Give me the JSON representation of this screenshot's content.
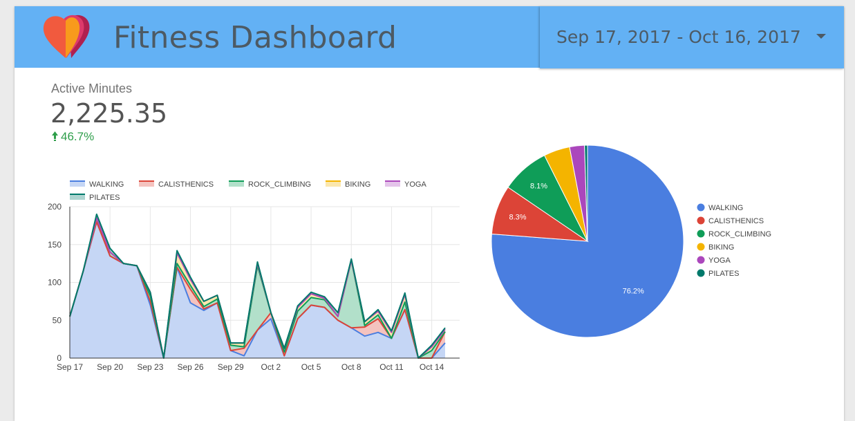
{
  "header": {
    "title": "Fitness Dashboard",
    "date_range": "Sep 17, 2017 - Oct 16, 2017",
    "logo_icon": "heart-logo-icon",
    "dropdown_icon": "caret-down-icon"
  },
  "kpi": {
    "label": "Active Minutes",
    "value": "2,225.35",
    "delta": "46.7%",
    "delta_icon": "arrow-up-icon",
    "delta_color": "#2e9e4a"
  },
  "chart_data": [
    {
      "type": "area",
      "stacked": true,
      "legend": [
        "WALKING",
        "CALISTHENICS",
        "ROCK_CLIMBING",
        "BIKING",
        "YOGA",
        "PILATES"
      ],
      "legend_position": "top-left",
      "x_tick_labels": [
        "Sep 17",
        "Sep 20",
        "Sep 23",
        "Sep 26",
        "Sep 29",
        "Oct 2",
        "Oct 5",
        "Oct 8",
        "Oct 11",
        "Oct 14"
      ],
      "x": [
        "Sep 17",
        "Sep 18",
        "Sep 19",
        "Sep 20",
        "Sep 21",
        "Sep 22",
        "Sep 23",
        "Sep 24",
        "Sep 25",
        "Sep 26",
        "Sep 27",
        "Sep 28",
        "Sep 29",
        "Sep 30",
        "Oct 1",
        "Oct 2",
        "Oct 3",
        "Oct 4",
        "Oct 5",
        "Oct 6",
        "Oct 7",
        "Oct 8",
        "Oct 9",
        "Oct 10",
        "Oct 11",
        "Oct 12",
        "Oct 13",
        "Oct 14",
        "Oct 15"
      ],
      "ylim": [
        0,
        200
      ],
      "y_ticks": [
        0,
        50,
        100,
        150,
        200
      ],
      "grid": true,
      "series": [
        {
          "name": "WALKING",
          "color": "#4a7ee0",
          "values": [
            55,
            115,
            180,
            135,
            125,
            122,
            70,
            0,
            120,
            73,
            63,
            73,
            10,
            3,
            37,
            52,
            3,
            52,
            70,
            67,
            50,
            40,
            29,
            34,
            26,
            64,
            0,
            0,
            20
          ]
        },
        {
          "name": "CALISTHENICS",
          "color": "#dc4437",
          "values": [
            0,
            0,
            0,
            0,
            0,
            0,
            5,
            0,
            0,
            18,
            2,
            0,
            0,
            10,
            0,
            8,
            0,
            0,
            0,
            0,
            0,
            0,
            12,
            18,
            0,
            0,
            0,
            0,
            15
          ]
        },
        {
          "name": "ROCK_CLIMBING",
          "color": "#0f9d58",
          "values": [
            0,
            0,
            5,
            5,
            0,
            0,
            7,
            0,
            5,
            5,
            3,
            5,
            7,
            2,
            85,
            0,
            5,
            10,
            10,
            10,
            5,
            89,
            2,
            5,
            0,
            10,
            0,
            10,
            0
          ]
        },
        {
          "name": "BIKING",
          "color": "#f4b400",
          "values": [
            0,
            0,
            0,
            0,
            0,
            0,
            5,
            0,
            14,
            8,
            7,
            5,
            3,
            5,
            3,
            0,
            5,
            5,
            5,
            2,
            0,
            0,
            5,
            5,
            8,
            10,
            0,
            5,
            3
          ]
        },
        {
          "name": "YOGA",
          "color": "#ab47bc",
          "values": [
            0,
            0,
            0,
            0,
            0,
            0,
            0,
            0,
            0,
            0,
            0,
            0,
            0,
            0,
            0,
            0,
            0,
            0,
            0,
            0,
            0,
            0,
            0,
            0,
            0,
            0,
            0,
            0,
            0
          ]
        },
        {
          "name": "PILATES",
          "color": "#00796b",
          "values": [
            0,
            0,
            5,
            5,
            0,
            0,
            0,
            0,
            3,
            3,
            0,
            0,
            0,
            0,
            2,
            0,
            0,
            2,
            2,
            2,
            5,
            2,
            0,
            2,
            2,
            2,
            0,
            2,
            2
          ]
        }
      ]
    },
    {
      "type": "pie",
      "legend_position": "right",
      "slices": [
        {
          "name": "WALKING",
          "value": 76.2,
          "color": "#4a7ee0",
          "label": "76.2%"
        },
        {
          "name": "CALISTHENICS",
          "value": 8.3,
          "color": "#dc4437",
          "label": "8.3%"
        },
        {
          "name": "ROCK_CLIMBING",
          "value": 8.1,
          "color": "#0f9d58",
          "label": "8.1%"
        },
        {
          "name": "BIKING",
          "value": 4.4,
          "color": "#f4b400",
          "label": ""
        },
        {
          "name": "YOGA",
          "value": 2.5,
          "color": "#ab47bc",
          "label": ""
        },
        {
          "name": "PILATES",
          "value": 0.5,
          "color": "#00796b",
          "label": ""
        }
      ]
    }
  ]
}
